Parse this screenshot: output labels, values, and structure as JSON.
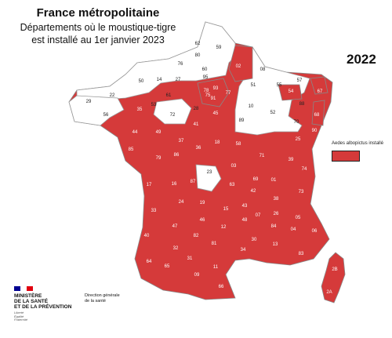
{
  "header": {
    "title": "France métropolitaine",
    "subtitle_line1": "Départements où le moustique-tigre",
    "subtitle_line2": "est installé au 1er janvier 2023"
  },
  "year_label": "2022",
  "legend": {
    "label": "Aedes albopictus installé",
    "color": "#d53a3a"
  },
  "colors": {
    "installed": "#d53a3a",
    "not_installed": "#ffffff",
    "border": "#999999"
  },
  "departments": [
    {
      "code": "62",
      "installed": false
    },
    {
      "code": "59",
      "installed": false
    },
    {
      "code": "80",
      "installed": false
    },
    {
      "code": "76",
      "installed": false
    },
    {
      "code": "02",
      "installed": true
    },
    {
      "code": "08",
      "installed": false
    },
    {
      "code": "60",
      "installed": false
    },
    {
      "code": "50",
      "installed": false
    },
    {
      "code": "14",
      "installed": false
    },
    {
      "code": "27",
      "installed": false
    },
    {
      "code": "95",
      "installed": false
    },
    {
      "code": "93",
      "installed": true
    },
    {
      "code": "51",
      "installed": false
    },
    {
      "code": "55",
      "installed": false
    },
    {
      "code": "57",
      "installed": false
    },
    {
      "code": "67",
      "installed": true
    },
    {
      "code": "29",
      "installed": false
    },
    {
      "code": "22",
      "installed": false
    },
    {
      "code": "35",
      "installed": true
    },
    {
      "code": "53",
      "installed": false
    },
    {
      "code": "61",
      "installed": false
    },
    {
      "code": "78",
      "installed": true
    },
    {
      "code": "75",
      "installed": true
    },
    {
      "code": "77",
      "installed": true
    },
    {
      "code": "54",
      "installed": true
    },
    {
      "code": "88",
      "installed": false
    },
    {
      "code": "68",
      "installed": true
    },
    {
      "code": "56",
      "installed": false
    },
    {
      "code": "72",
      "installed": false
    },
    {
      "code": "28",
      "installed": false
    },
    {
      "code": "91",
      "installed": true
    },
    {
      "code": "10",
      "installed": false
    },
    {
      "code": "52",
      "installed": false
    },
    {
      "code": "70",
      "installed": false
    },
    {
      "code": "44",
      "installed": true
    },
    {
      "code": "49",
      "installed": true
    },
    {
      "code": "37",
      "installed": true
    },
    {
      "code": "41",
      "installed": true
    },
    {
      "code": "45",
      "installed": true
    },
    {
      "code": "89",
      "installed": false
    },
    {
      "code": "21",
      "installed": true
    },
    {
      "code": "25",
      "installed": true
    },
    {
      "code": "90",
      "installed": true
    },
    {
      "code": "85",
      "installed": true
    },
    {
      "code": "79",
      "installed": true
    },
    {
      "code": "86",
      "installed": true
    },
    {
      "code": "36",
      "installed": true
    },
    {
      "code": "18",
      "installed": true
    },
    {
      "code": "58",
      "installed": true
    },
    {
      "code": "71",
      "installed": true
    },
    {
      "code": "39",
      "installed": true
    },
    {
      "code": "17",
      "installed": true
    },
    {
      "code": "16",
      "installed": true
    },
    {
      "code": "87",
      "installed": true
    },
    {
      "code": "23",
      "installed": false
    },
    {
      "code": "03",
      "installed": true
    },
    {
      "code": "01",
      "installed": true
    },
    {
      "code": "74",
      "installed": true
    },
    {
      "code": "69",
      "installed": true
    },
    {
      "code": "42",
      "installed": true
    },
    {
      "code": "73",
      "installed": true
    },
    {
      "code": "33",
      "installed": true
    },
    {
      "code": "24",
      "installed": true
    },
    {
      "code": "19",
      "installed": true
    },
    {
      "code": "63",
      "installed": true
    },
    {
      "code": "43",
      "installed": true
    },
    {
      "code": "38",
      "installed": true
    },
    {
      "code": "15",
      "installed": true
    },
    {
      "code": "07",
      "installed": true
    },
    {
      "code": "26",
      "installed": true
    },
    {
      "code": "05",
      "installed": true
    },
    {
      "code": "40",
      "installed": true
    },
    {
      "code": "47",
      "installed": true
    },
    {
      "code": "46",
      "installed": true
    },
    {
      "code": "12",
      "installed": true
    },
    {
      "code": "48",
      "installed": true
    },
    {
      "code": "30",
      "installed": true
    },
    {
      "code": "84",
      "installed": true
    },
    {
      "code": "04",
      "installed": true
    },
    {
      "code": "06",
      "installed": true
    },
    {
      "code": "64",
      "installed": true
    },
    {
      "code": "32",
      "installed": true
    },
    {
      "code": "82",
      "installed": true
    },
    {
      "code": "81",
      "installed": true
    },
    {
      "code": "34",
      "installed": true
    },
    {
      "code": "13",
      "installed": true
    },
    {
      "code": "83",
      "installed": true
    },
    {
      "code": "65",
      "installed": true
    },
    {
      "code": "31",
      "installed": true
    },
    {
      "code": "11",
      "installed": true
    },
    {
      "code": "09",
      "installed": true
    },
    {
      "code": "66",
      "installed": true
    },
    {
      "code": "2B",
      "installed": true
    },
    {
      "code": "2A",
      "installed": true
    }
  ],
  "footer": {
    "ministry": "MINISTÈRE\nDE LA SANTÉ\nET DE LA PRÉVENTION",
    "motto": "Liberté\nÉgalité\nFraternité",
    "direction": "Direction générale\nde la santé",
    "flag_colors": [
      "#000091",
      "#ffffff",
      "#e1000f"
    ]
  }
}
